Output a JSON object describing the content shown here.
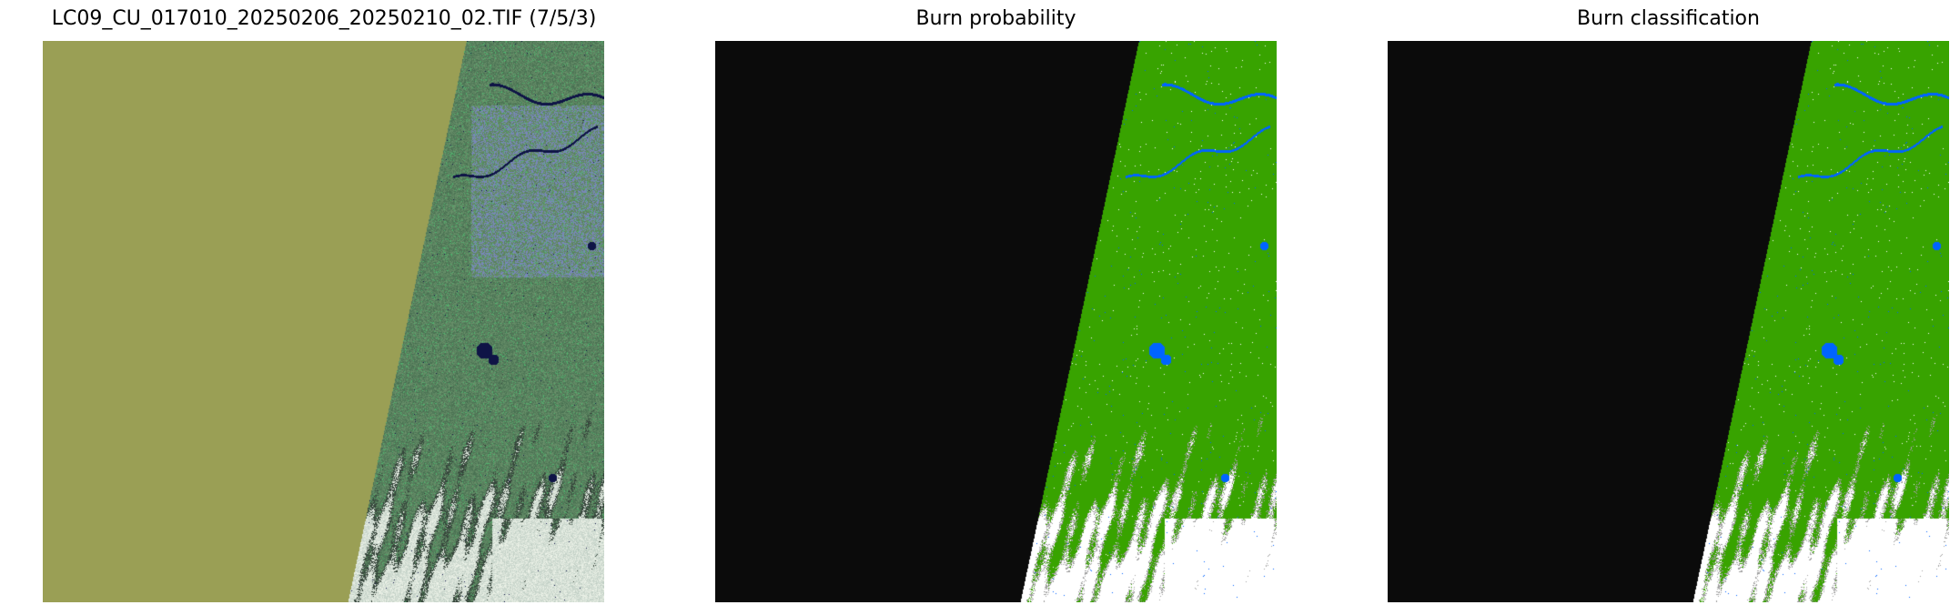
{
  "panels": [
    {
      "title": "LC09_CU_017010_20250206_20250210_02.TIF (7/5/3)",
      "kind": "rgb-composite"
    },
    {
      "title": "Burn probability",
      "kind": "probability-map"
    },
    {
      "title": "Burn classification",
      "kind": "classification-map"
    }
  ],
  "colors": {
    "nodata_rgb": "#9a9f55",
    "nodata_map": "#0b0b0b",
    "unburned": "#38a300",
    "water": "#0064ff",
    "cloud": "#ffffff",
    "shadow": "#a0a0a0"
  }
}
